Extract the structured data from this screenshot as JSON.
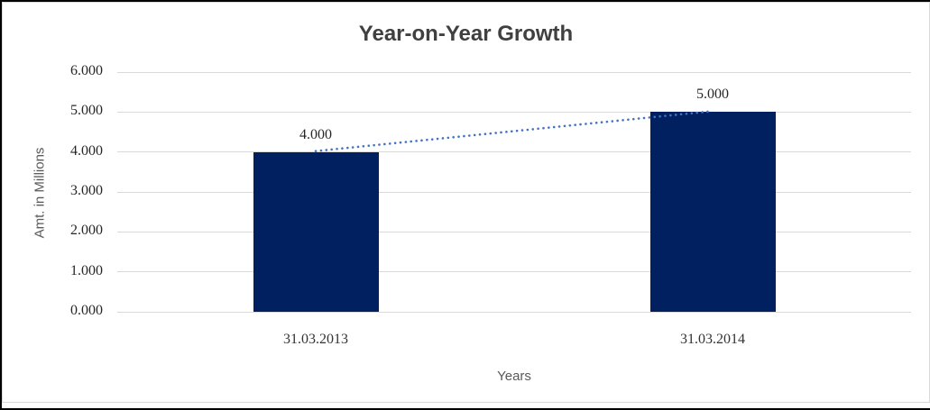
{
  "chart_data": {
    "type": "bar",
    "title": "Year-on-Year Growth",
    "xlabel": "Years",
    "ylabel": "Amt. in Millions",
    "categories": [
      "31.03.2013",
      "31.03.2014"
    ],
    "values": [
      4.0,
      5.0
    ],
    "data_labels": [
      "4.000",
      "5.000"
    ],
    "y_ticks": [
      "0.000",
      "1.000",
      "2.000",
      "3.000",
      "4.000",
      "5.000",
      "6.000"
    ],
    "ylim": [
      0,
      6
    ],
    "grid": true,
    "legend_position": "none",
    "colors": {
      "bar": "#002060",
      "trendline": "#4472C4",
      "gridline": "#d9d9d9",
      "title_text": "#404040",
      "axis_title_text": "#595959",
      "label_text": "#262626"
    }
  }
}
